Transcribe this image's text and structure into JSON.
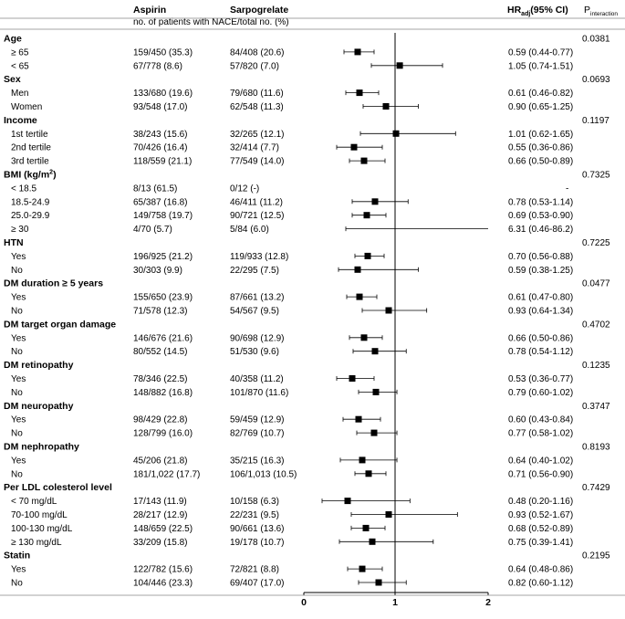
{
  "header": {
    "col_aspirin": "Aspirin",
    "col_sarpo": "Sarpogrelate",
    "col_hr": "HR",
    "col_hr_sub": "adj",
    "col_hr_ci": "(95% CI)",
    "col_p": "P",
    "col_p_sub": "interaction",
    "subheader": "no. of patients with NACE/total no. (%)"
  },
  "chart_data": {
    "type": "forest",
    "title": "",
    "xlabel": "",
    "ylabel": "",
    "xlim": [
      0,
      2
    ],
    "x_ticks": [
      "0",
      "1",
      "2"
    ],
    "reference_line": 1,
    "rows": [
      {
        "kind": "group",
        "label": "Age",
        "p": "0.0381"
      },
      {
        "kind": "item",
        "label": "≥ 65",
        "a": "159/450 (35.3)",
        "s": "84/408 (20.6)",
        "hr": 0.59,
        "lo": 0.44,
        "hi": 0.77,
        "txt": "0.59 (0.44-0.77)"
      },
      {
        "kind": "item",
        "label": "< 65",
        "a": "67/778 (8.6)",
        "s": "57/820 (7.0)",
        "hr": 1.05,
        "lo": 0.74,
        "hi": 1.51,
        "txt": "1.05 (0.74-1.51)"
      },
      {
        "kind": "group",
        "label": "Sex",
        "p": "0.0693"
      },
      {
        "kind": "item",
        "label": "Men",
        "a": "133/680 (19.6)",
        "s": "79/680 (11.6)",
        "hr": 0.61,
        "lo": 0.46,
        "hi": 0.82,
        "txt": "0.61 (0.46-0.82)"
      },
      {
        "kind": "item",
        "label": "Women",
        "a": "93/548 (17.0)",
        "s": "62/548 (11.3)",
        "hr": 0.9,
        "lo": 0.65,
        "hi": 1.25,
        "txt": "0.90 (0.65-1.25)"
      },
      {
        "kind": "group",
        "label": "Income",
        "p": "0.1197"
      },
      {
        "kind": "item",
        "label": "1st tertile",
        "a": "38/243 (15.6)",
        "s": "32/265 (12.1)",
        "hr": 1.01,
        "lo": 0.62,
        "hi": 1.65,
        "txt": "1.01 (0.62-1.65)"
      },
      {
        "kind": "item",
        "label": "2nd tertile",
        "a": "70/426 (16.4)",
        "s": "32/414 (7.7)",
        "hr": 0.55,
        "lo": 0.36,
        "hi": 0.86,
        "txt": "0.55 (0.36-0.86)"
      },
      {
        "kind": "item",
        "label": "3rd tertile",
        "a": "118/559 (21.1)",
        "s": "77/549 (14.0)",
        "hr": 0.66,
        "lo": 0.5,
        "hi": 0.89,
        "txt": "0.66 (0.50-0.89)"
      },
      {
        "kind": "group",
        "label": "BMI (kg/m",
        "sup": "2",
        "tail": ")",
        "p": "0.7325"
      },
      {
        "kind": "item",
        "label": "< 18.5",
        "a": "8/13 (61.5)",
        "s": "0/12 (-)",
        "hr": null,
        "lo": null,
        "hi": null,
        "txt": "-"
      },
      {
        "kind": "item",
        "label": "18.5-24.9",
        "a": "65/387 (16.8)",
        "s": "46/411 (11.2)",
        "hr": 0.78,
        "lo": 0.53,
        "hi": 1.14,
        "txt": "0.78 (0.53-1.14)"
      },
      {
        "kind": "item",
        "label": "25.0-29.9",
        "a": "149/758 (19.7)",
        "s": "90/721 (12.5)",
        "hr": 0.69,
        "lo": 0.53,
        "hi": 0.9,
        "txt": "0.69 (0.53-0.90)"
      },
      {
        "kind": "item",
        "label": "≥ 30",
        "a": "4/70 (5.7)",
        "s": "5/84 (6.0)",
        "hr": 6.31,
        "lo": 0.46,
        "hi": 86.2,
        "txt": "6.31 (0.46-86.2)"
      },
      {
        "kind": "group",
        "label": "HTN",
        "p": "0.7225"
      },
      {
        "kind": "item",
        "label": "Yes",
        "a": "196/925 (21.2)",
        "s": "119/933 (12.8)",
        "hr": 0.7,
        "lo": 0.56,
        "hi": 0.88,
        "txt": "0.70 (0.56-0.88)"
      },
      {
        "kind": "item",
        "label": "No",
        "a": "30/303 (9.9)",
        "s": "22/295 (7.5)",
        "hr": 0.59,
        "lo": 0.38,
        "hi": 1.25,
        "txt": "0.59 (0.38-1.25)"
      },
      {
        "kind": "group",
        "label": "DM duration ≥ 5 years",
        "p": "0.0477"
      },
      {
        "kind": "item",
        "label": "Yes",
        "a": "155/650 (23.9)",
        "s": "87/661 (13.2)",
        "hr": 0.61,
        "lo": 0.47,
        "hi": 0.8,
        "txt": "0.61 (0.47-0.80)"
      },
      {
        "kind": "item",
        "label": "No",
        "a": "71/578 (12.3)",
        "s": "54/567 (9.5)",
        "hr": 0.93,
        "lo": 0.64,
        "hi": 1.34,
        "txt": "0.93 (0.64-1.34)"
      },
      {
        "kind": "group",
        "label": "DM target organ damage",
        "p": "0.4702"
      },
      {
        "kind": "item",
        "label": "Yes",
        "a": "146/676 (21.6)",
        "s": "90/698 (12.9)",
        "hr": 0.66,
        "lo": 0.5,
        "hi": 0.86,
        "txt": "0.66 (0.50-0.86)"
      },
      {
        "kind": "item",
        "label": "No",
        "a": "80/552 (14.5)",
        "s": "51/530 (9.6)",
        "hr": 0.78,
        "lo": 0.54,
        "hi": 1.12,
        "txt": "0.78 (0.54-1.12)"
      },
      {
        "kind": "group",
        "label": "DM retinopathy",
        "p": "0.1235"
      },
      {
        "kind": "item",
        "label": "Yes",
        "a": "78/346 (22.5)",
        "s": "40/358 (11.2)",
        "hr": 0.53,
        "lo": 0.36,
        "hi": 0.77,
        "txt": "0.53 (0.36-0.77)"
      },
      {
        "kind": "item",
        "label": "No",
        "a": "148/882 (16.8)",
        "s": "101/870 (11.6)",
        "hr": 0.79,
        "lo": 0.6,
        "hi": 1.02,
        "txt": "0.79 (0.60-1.02)"
      },
      {
        "kind": "group",
        "label": "DM neuropathy",
        "p": "0.3747"
      },
      {
        "kind": "item",
        "label": "Yes",
        "a": "98/429 (22.8)",
        "s": "59/459 (12.9)",
        "hr": 0.6,
        "lo": 0.43,
        "hi": 0.84,
        "txt": "0.60 (0.43-0.84)"
      },
      {
        "kind": "item",
        "label": "No",
        "a": "128/799 (16.0)",
        "s": "82/769 (10.7)",
        "hr": 0.77,
        "lo": 0.58,
        "hi": 1.02,
        "txt": "0.77 (0.58-1.02)"
      },
      {
        "kind": "group",
        "label": "DM nephropathy",
        "p": "0.8193"
      },
      {
        "kind": "item",
        "label": "Yes",
        "a": "45/206 (21.8)",
        "s": "35/215 (16.3)",
        "hr": 0.64,
        "lo": 0.4,
        "hi": 1.02,
        "txt": "0.64 (0.40-1.02)"
      },
      {
        "kind": "item",
        "label": "No",
        "a": "181/1,022 (17.7)",
        "s": "106/1,013 (10.5)",
        "hr": 0.71,
        "lo": 0.56,
        "hi": 0.9,
        "txt": "0.71 (0.56-0.90)"
      },
      {
        "kind": "group",
        "label": "Per LDL colesterol level",
        "p": "0.7429"
      },
      {
        "kind": "item",
        "label": "< 70 mg/dL",
        "a": "17/143 (11.9)",
        "s": "10/158 (6.3)",
        "hr": 0.48,
        "lo": 0.2,
        "hi": 1.16,
        "txt": "0.48 (0.20-1.16)"
      },
      {
        "kind": "item",
        "label": "70-100 mg/dL",
        "a": "28/217 (12.9)",
        "s": "22/231 (9.5)",
        "hr": 0.93,
        "lo": 0.52,
        "hi": 1.67,
        "txt": "0.93 (0.52-1.67)"
      },
      {
        "kind": "item",
        "label": "100-130 mg/dL",
        "a": "148/659 (22.5)",
        "s": "90/661 (13.6)",
        "hr": 0.68,
        "lo": 0.52,
        "hi": 0.89,
        "txt": "0.68 (0.52-0.89)"
      },
      {
        "kind": "item",
        "label": "≥ 130 mg/dL",
        "a": "33/209 (15.8)",
        "s": "19/178 (10.7)",
        "hr": 0.75,
        "lo": 0.39,
        "hi": 1.41,
        "txt": "0.75 (0.39-1.41)"
      },
      {
        "kind": "group",
        "label": "Statin",
        "p": "0.2195"
      },
      {
        "kind": "item",
        "label": "Yes",
        "a": "122/782 (15.6)",
        "s": "72/821 (8.8)",
        "hr": 0.64,
        "lo": 0.48,
        "hi": 0.86,
        "txt": "0.64 (0.48-0.86)"
      },
      {
        "kind": "item",
        "label": "No",
        "a": "104/446 (23.3)",
        "s": "69/407 (17.0)",
        "hr": 0.82,
        "lo": 0.6,
        "hi": 1.12,
        "txt": "0.82 (0.60-1.12)"
      }
    ]
  }
}
